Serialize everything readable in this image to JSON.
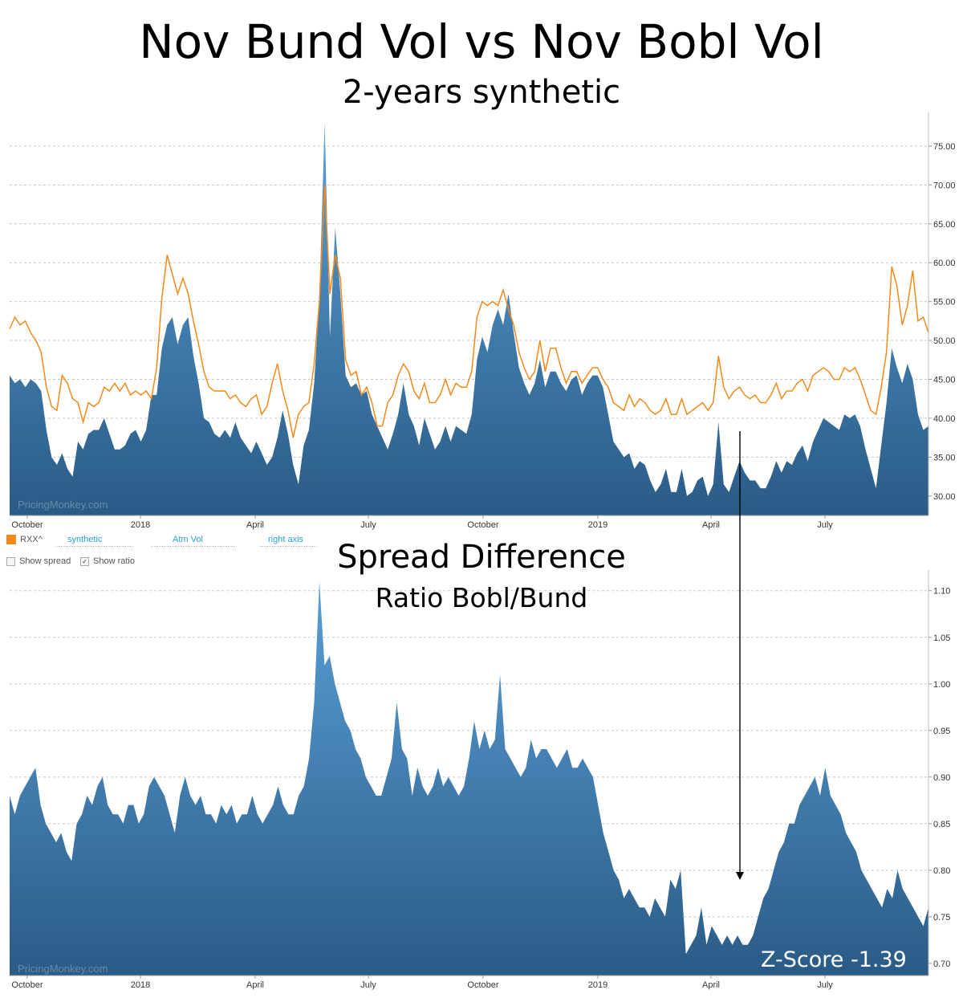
{
  "header": {
    "title": "Nov Bund Vol vs Nov Bobl Vol",
    "subtitle": "2-years synthetic"
  },
  "legend": {
    "series": "RXX^",
    "mode": "synthetic",
    "measure": "Atm Vol",
    "axis": "right axis",
    "show_spread_label": "Show spread",
    "show_spread_checked": false,
    "show_ratio_label": "Show ratio",
    "show_ratio_checked": true
  },
  "lower": {
    "title": "Spread Difference",
    "subtitle": "Ratio Bobl/Bund",
    "zscore": "Z-Score -1.39"
  },
  "watermark": "PricingMonkey.com",
  "colors": {
    "area_top": "#5aa0d6",
    "area_bottom": "#2a5b86",
    "line": "#f28a1b",
    "grid": "#c8c8c8"
  },
  "chart_data": [
    {
      "type": "area",
      "x_ticks": [
        "October",
        "2018",
        "April",
        "July",
        "October",
        "2019",
        "April",
        "July"
      ],
      "y_ticks": [
        "30.00",
        "35.00",
        "40.00",
        "45.00",
        "50.00",
        "55.00",
        "60.00",
        "65.00",
        "70.00",
        "75.00"
      ],
      "ylim": [
        27.5,
        78.5
      ],
      "y_axis": "right",
      "grid": true,
      "series": [
        {
          "name": "Atm Vol",
          "style": "area",
          "values": [
            45.5,
            44.5,
            45.0,
            44.0,
            45.0,
            44.5,
            43.5,
            38.5,
            35.0,
            34.0,
            35.5,
            33.5,
            32.5,
            37.0,
            36.0,
            38.0,
            38.5,
            38.5,
            40.0,
            38.0,
            36.0,
            36.0,
            36.5,
            38.0,
            38.5,
            37.0,
            38.5,
            43.0,
            43.0,
            49.0,
            52.0,
            53.0,
            49.5,
            52.0,
            53.0,
            48.0,
            44.5,
            40.0,
            39.5,
            38.0,
            37.5,
            38.5,
            37.5,
            39.5,
            37.5,
            36.5,
            35.5,
            37.0,
            35.5,
            34.0,
            35.0,
            37.5,
            41.0,
            38.0,
            34.0,
            31.5,
            36.5,
            38.5,
            44.5,
            55.5,
            78.0,
            50.5,
            64.5,
            56.0,
            45.5,
            44.0,
            44.5,
            43.0,
            43.5,
            40.5,
            39.0,
            37.5,
            36.0,
            38.0,
            40.5,
            44.5,
            40.5,
            39.0,
            36.5,
            40.0,
            38.0,
            36.0,
            37.0,
            39.0,
            37.0,
            39.0,
            38.5,
            38.0,
            40.5,
            47.5,
            50.5,
            48.5,
            52.0,
            54.0,
            52.0,
            56.0,
            51.0,
            46.5,
            44.5,
            43.0,
            44.5,
            47.5,
            44.0,
            46.0,
            46.0,
            44.5,
            43.5,
            45.0,
            45.5,
            43.0,
            44.5,
            45.5,
            45.5,
            44.0,
            40.5,
            37.0,
            36.0,
            35.0,
            35.5,
            33.5,
            34.5,
            34.0,
            32.0,
            30.5,
            31.5,
            33.5,
            30.5,
            30.5,
            33.5,
            30.0,
            30.5,
            32.0,
            32.5,
            30.0,
            31.5,
            39.5,
            31.5,
            30.5,
            32.5,
            34.5,
            33.0,
            32.0,
            32.0,
            31.0,
            31.0,
            32.5,
            34.5,
            33.0,
            34.5,
            34.0,
            35.5,
            36.5,
            34.5,
            37.0,
            38.5,
            40.0,
            39.5,
            39.0,
            38.5,
            40.5,
            40.0,
            40.5,
            39.0,
            36.0,
            33.5,
            31.0,
            36.5,
            42.0,
            49.0,
            46.5,
            44.5,
            47.0,
            45.0,
            40.5,
            38.5,
            39.0
          ]
        },
        {
          "name": "RXX^",
          "style": "line",
          "values": [
            51.5,
            53.0,
            52.0,
            52.5,
            51.0,
            50.0,
            48.5,
            44.0,
            41.5,
            41.0,
            45.5,
            44.5,
            42.5,
            42.0,
            39.5,
            42.0,
            41.5,
            42.0,
            44.0,
            43.5,
            44.5,
            43.5,
            44.5,
            43.0,
            43.5,
            43.0,
            43.5,
            42.5,
            46.5,
            55.5,
            61.0,
            58.5,
            56.0,
            58.0,
            56.0,
            52.5,
            49.5,
            46.0,
            44.0,
            43.5,
            43.5,
            43.5,
            42.5,
            43.0,
            42.0,
            41.5,
            42.5,
            43.0,
            40.5,
            41.5,
            44.5,
            47.0,
            43.5,
            41.0,
            37.5,
            40.5,
            41.5,
            42.0,
            47.0,
            55.0,
            70.0,
            56.0,
            61.0,
            58.0,
            47.5,
            45.5,
            46.0,
            43.0,
            44.0,
            42.0,
            39.0,
            39.0,
            42.0,
            43.0,
            45.5,
            47.0,
            46.0,
            43.5,
            42.5,
            44.5,
            42.0,
            42.0,
            43.0,
            45.0,
            43.0,
            44.5,
            44.0,
            44.0,
            46.0,
            53.0,
            55.0,
            54.5,
            55.0,
            54.5,
            56.5,
            54.0,
            52.0,
            48.5,
            46.5,
            45.0,
            46.0,
            50.0,
            46.0,
            49.0,
            49.0,
            46.5,
            44.5,
            46.0,
            46.0,
            44.5,
            45.5,
            46.5,
            46.5,
            45.0,
            44.0,
            42.0,
            41.5,
            41.0,
            43.0,
            41.5,
            42.5,
            42.0,
            41.0,
            40.5,
            41.0,
            42.5,
            40.5,
            40.5,
            42.5,
            40.5,
            41.0,
            41.5,
            42.0,
            41.0,
            42.0,
            48.0,
            44.0,
            42.5,
            43.5,
            44.0,
            43.0,
            42.5,
            43.0,
            42.0,
            42.0,
            43.0,
            44.5,
            42.5,
            43.5,
            43.5,
            44.5,
            45.0,
            43.5,
            45.5,
            46.0,
            46.5,
            46.0,
            45.0,
            45.0,
            46.5,
            46.0,
            46.5,
            45.0,
            43.0,
            41.0,
            40.5,
            44.0,
            48.5,
            59.5,
            57.0,
            52.0,
            54.5,
            59.0,
            52.5,
            53.0,
            51.0
          ]
        }
      ]
    },
    {
      "type": "area",
      "x_ticks": [
        "October",
        "2018",
        "April",
        "July",
        "October",
        "2019",
        "April",
        "July"
      ],
      "y_ticks": [
        "0.70",
        "0.75",
        "0.80",
        "0.85",
        "0.90",
        "0.95",
        "1.00",
        "1.05",
        "1.10"
      ],
      "ylim": [
        0.687,
        1.117
      ],
      "y_axis": "right",
      "grid": true,
      "series": [
        {
          "name": "Ratio Bobl/Bund",
          "style": "area",
          "values": [
            0.88,
            0.86,
            0.88,
            0.89,
            0.9,
            0.91,
            0.87,
            0.85,
            0.84,
            0.83,
            0.84,
            0.82,
            0.81,
            0.85,
            0.86,
            0.88,
            0.87,
            0.89,
            0.9,
            0.87,
            0.86,
            0.86,
            0.85,
            0.87,
            0.87,
            0.85,
            0.86,
            0.89,
            0.9,
            0.89,
            0.88,
            0.86,
            0.84,
            0.88,
            0.9,
            0.88,
            0.87,
            0.88,
            0.86,
            0.86,
            0.85,
            0.87,
            0.86,
            0.87,
            0.85,
            0.86,
            0.86,
            0.88,
            0.86,
            0.85,
            0.86,
            0.87,
            0.89,
            0.87,
            0.86,
            0.86,
            0.88,
            0.89,
            0.92,
            0.98,
            1.11,
            1.02,
            1.03,
            1.0,
            0.98,
            0.96,
            0.95,
            0.93,
            0.92,
            0.9,
            0.89,
            0.88,
            0.88,
            0.9,
            0.92,
            0.98,
            0.93,
            0.92,
            0.88,
            0.91,
            0.89,
            0.88,
            0.89,
            0.91,
            0.89,
            0.9,
            0.89,
            0.88,
            0.89,
            0.92,
            0.96,
            0.93,
            0.95,
            0.93,
            0.94,
            1.01,
            0.93,
            0.92,
            0.91,
            0.9,
            0.91,
            0.94,
            0.92,
            0.93,
            0.93,
            0.92,
            0.91,
            0.92,
            0.93,
            0.91,
            0.91,
            0.92,
            0.91,
            0.9,
            0.87,
            0.84,
            0.82,
            0.8,
            0.79,
            0.77,
            0.78,
            0.77,
            0.76,
            0.76,
            0.75,
            0.77,
            0.76,
            0.75,
            0.79,
            0.78,
            0.8,
            0.71,
            0.72,
            0.73,
            0.76,
            0.72,
            0.74,
            0.73,
            0.72,
            0.73,
            0.72,
            0.73,
            0.72,
            0.72,
            0.73,
            0.75,
            0.77,
            0.78,
            0.8,
            0.82,
            0.83,
            0.85,
            0.85,
            0.87,
            0.88,
            0.89,
            0.9,
            0.88,
            0.91,
            0.88,
            0.87,
            0.86,
            0.84,
            0.83,
            0.82,
            0.8,
            0.79,
            0.78,
            0.77,
            0.76,
            0.78,
            0.77,
            0.8,
            0.78,
            0.77,
            0.76,
            0.75,
            0.74,
            0.76
          ]
        }
      ]
    }
  ]
}
